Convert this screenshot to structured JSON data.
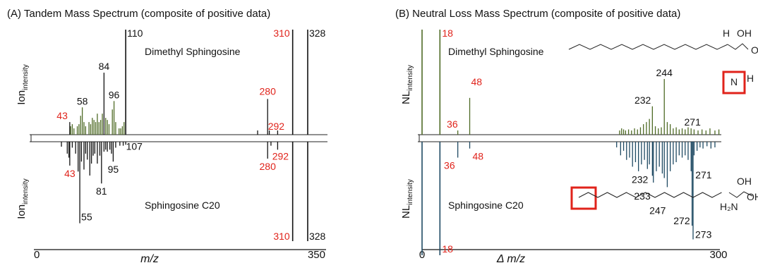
{
  "colors": {
    "green": "#4f6b26",
    "blue": "#1f4a63",
    "black": "#111111",
    "red": "#e0231b",
    "struct_box": "#e0231b"
  },
  "chart_data": [
    {
      "type": "bar",
      "panel": "A",
      "title": "(A) Tandem Mass Spectrum (composite of positive data)",
      "xlabel": "m/z",
      "ylabel_top": {
        "main": "Ion",
        "sub": "intensity"
      },
      "ylabel_bottom": {
        "main": "Ion",
        "sub": "intensity"
      },
      "xlim": [
        0,
        350
      ],
      "x_ticks": [
        "0",
        "350"
      ],
      "top_compound": "Dimethyl Sphingosine",
      "bottom_compound": "Sphingosine C20",
      "top_peaks": [
        {
          "x": 43,
          "y": 0.12,
          "label": "43",
          "red": true
        },
        {
          "x": 44,
          "y": 0.08
        },
        {
          "x": 46,
          "y": 0.1
        },
        {
          "x": 48,
          "y": 0.06
        },
        {
          "x": 52,
          "y": 0.08
        },
        {
          "x": 54,
          "y": 0.1
        },
        {
          "x": 56,
          "y": 0.18
        },
        {
          "x": 58,
          "y": 0.26,
          "label": "58"
        },
        {
          "x": 60,
          "y": 0.12
        },
        {
          "x": 62,
          "y": 0.08
        },
        {
          "x": 66,
          "y": 0.12
        },
        {
          "x": 68,
          "y": 0.1
        },
        {
          "x": 70,
          "y": 0.16
        },
        {
          "x": 72,
          "y": 0.14
        },
        {
          "x": 74,
          "y": 0.12
        },
        {
          "x": 76,
          "y": 0.2
        },
        {
          "x": 78,
          "y": 0.12
        },
        {
          "x": 80,
          "y": 0.14
        },
        {
          "x": 82,
          "y": 0.2
        },
        {
          "x": 84,
          "y": 0.59,
          "label": "84"
        },
        {
          "x": 86,
          "y": 0.16
        },
        {
          "x": 88,
          "y": 0.14
        },
        {
          "x": 90,
          "y": 0.1
        },
        {
          "x": 94,
          "y": 0.24
        },
        {
          "x": 96,
          "y": 0.32,
          "label": "96"
        },
        {
          "x": 98,
          "y": 0.12
        },
        {
          "x": 102,
          "y": 0.06
        },
        {
          "x": 104,
          "y": 0.06
        },
        {
          "x": 106,
          "y": 0.08
        },
        {
          "x": 108,
          "y": 0.12
        },
        {
          "x": 110,
          "y": 1.0,
          "label": "110"
        },
        {
          "x": 268,
          "y": 0.04
        },
        {
          "x": 280,
          "y": 0.34,
          "label": "280",
          "red": true
        },
        {
          "x": 282,
          "y": 0.04
        },
        {
          "x": 292,
          "y": 0.04,
          "label": "292",
          "red": true
        },
        {
          "x": 310,
          "y": 1.0,
          "label": "310",
          "red": true
        },
        {
          "x": 328,
          "y": 1.0,
          "label": "328"
        }
      ],
      "bottom_peaks": [
        {
          "x": 33,
          "y": 0.05
        },
        {
          "x": 40,
          "y": 0.12
        },
        {
          "x": 42,
          "y": 0.16
        },
        {
          "x": 43,
          "y": 0.24,
          "label": "43",
          "red": true
        },
        {
          "x": 46,
          "y": 0.06
        },
        {
          "x": 50,
          "y": 0.12
        },
        {
          "x": 53,
          "y": 0.3
        },
        {
          "x": 55,
          "y": 0.82,
          "label": "55"
        },
        {
          "x": 57,
          "y": 0.2
        },
        {
          "x": 60,
          "y": 0.28
        },
        {
          "x": 62,
          "y": 0.12
        },
        {
          "x": 64,
          "y": 0.18
        },
        {
          "x": 67,
          "y": 0.34
        },
        {
          "x": 69,
          "y": 0.22
        },
        {
          "x": 71,
          "y": 0.14
        },
        {
          "x": 73,
          "y": 0.12
        },
        {
          "x": 76,
          "y": 0.22
        },
        {
          "x": 79,
          "y": 0.14
        },
        {
          "x": 81,
          "y": 0.42,
          "label": "81"
        },
        {
          "x": 84,
          "y": 0.1
        },
        {
          "x": 86,
          "y": 0.08
        },
        {
          "x": 88,
          "y": 0.1
        },
        {
          "x": 91,
          "y": 0.08
        },
        {
          "x": 93,
          "y": 0.12
        },
        {
          "x": 95,
          "y": 0.2,
          "label": "95"
        },
        {
          "x": 98,
          "y": 0.06
        },
        {
          "x": 103,
          "y": 0.04
        },
        {
          "x": 107,
          "y": 0.04,
          "label": "107"
        },
        {
          "x": 110,
          "y": 0.03
        },
        {
          "x": 280,
          "y": 0.17,
          "label": "280",
          "red": true
        },
        {
          "x": 284,
          "y": 0.04
        },
        {
          "x": 292,
          "y": 0.08,
          "label": "292",
          "red": true
        },
        {
          "x": 310,
          "y": 1.0,
          "label": "310",
          "red": true
        },
        {
          "x": 328,
          "y": 1.0,
          "label": "328"
        }
      ]
    },
    {
      "type": "bar",
      "panel": "B",
      "title": "(B) Neutral Loss Mass Spectrum (composite of positive data)",
      "xlabel": "Δ m/z",
      "ylabel_top": {
        "main": "NL",
        "sub": "intensity"
      },
      "ylabel_bottom": {
        "main": "NL",
        "sub": "intensity"
      },
      "xlim": [
        0,
        300
      ],
      "x_ticks": [
        "0",
        "300"
      ],
      "top_compound": "Dimethyl Sphingosine",
      "bottom_compound": "Sphingosine C20",
      "top_peaks": [
        {
          "x": 0,
          "y": 1.0
        },
        {
          "x": 18,
          "y": 1.0,
          "label": "18",
          "red": true
        },
        {
          "x": 36,
          "y": 0.04,
          "label": "36",
          "red": true
        },
        {
          "x": 48,
          "y": 0.35,
          "label": "48",
          "red": true
        },
        {
          "x": 199,
          "y": 0.04
        },
        {
          "x": 201,
          "y": 0.06
        },
        {
          "x": 203,
          "y": 0.05
        },
        {
          "x": 205,
          "y": 0.04
        },
        {
          "x": 208,
          "y": 0.05
        },
        {
          "x": 211,
          "y": 0.04
        },
        {
          "x": 214,
          "y": 0.06
        },
        {
          "x": 217,
          "y": 0.05
        },
        {
          "x": 220,
          "y": 0.07
        },
        {
          "x": 223,
          "y": 0.1
        },
        {
          "x": 226,
          "y": 0.12
        },
        {
          "x": 229,
          "y": 0.15
        },
        {
          "x": 232,
          "y": 0.27,
          "label": "232"
        },
        {
          "x": 235,
          "y": 0.08
        },
        {
          "x": 238,
          "y": 0.06
        },
        {
          "x": 241,
          "y": 0.07
        },
        {
          "x": 244,
          "y": 0.53,
          "label": "244"
        },
        {
          "x": 247,
          "y": 0.12
        },
        {
          "x": 250,
          "y": 0.1
        },
        {
          "x": 253,
          "y": 0.06
        },
        {
          "x": 256,
          "y": 0.07
        },
        {
          "x": 259,
          "y": 0.05
        },
        {
          "x": 262,
          "y": 0.06
        },
        {
          "x": 265,
          "y": 0.05
        },
        {
          "x": 268,
          "y": 0.07
        },
        {
          "x": 271,
          "y": 0.06,
          "label": "271"
        },
        {
          "x": 274,
          "y": 0.05
        },
        {
          "x": 278,
          "y": 0.04
        },
        {
          "x": 282,
          "y": 0.05
        },
        {
          "x": 286,
          "y": 0.04
        },
        {
          "x": 290,
          "y": 0.06
        },
        {
          "x": 295,
          "y": 0.04
        },
        {
          "x": 299,
          "y": 0.05
        }
      ],
      "bottom_peaks": [
        {
          "x": 0,
          "y": 1.0
        },
        {
          "x": 18,
          "y": 1.0,
          "label": "18",
          "red": true
        },
        {
          "x": 36,
          "y": 0.14,
          "label": "36",
          "red": true
        },
        {
          "x": 48,
          "y": 0.06,
          "label": "48",
          "red": true
        },
        {
          "x": 196,
          "y": 0.05
        },
        {
          "x": 200,
          "y": 0.12
        },
        {
          "x": 203,
          "y": 0.08
        },
        {
          "x": 206,
          "y": 0.16
        },
        {
          "x": 209,
          "y": 0.14
        },
        {
          "x": 212,
          "y": 0.22
        },
        {
          "x": 215,
          "y": 0.18
        },
        {
          "x": 218,
          "y": 0.26
        },
        {
          "x": 221,
          "y": 0.2
        },
        {
          "x": 224,
          "y": 0.16
        },
        {
          "x": 227,
          "y": 0.24
        },
        {
          "x": 229,
          "y": 0.2
        },
        {
          "x": 232,
          "y": 0.3,
          "label": "232"
        },
        {
          "x": 233,
          "y": 0.36,
          "label": "233"
        },
        {
          "x": 236,
          "y": 0.26
        },
        {
          "x": 239,
          "y": 0.22
        },
        {
          "x": 242,
          "y": 0.28
        },
        {
          "x": 244,
          "y": 0.32
        },
        {
          "x": 247,
          "y": 0.4,
          "label": "247"
        },
        {
          "x": 250,
          "y": 0.26
        },
        {
          "x": 253,
          "y": 0.2
        },
        {
          "x": 256,
          "y": 0.18
        },
        {
          "x": 259,
          "y": 0.12
        },
        {
          "x": 262,
          "y": 0.14
        },
        {
          "x": 265,
          "y": 0.12
        },
        {
          "x": 268,
          "y": 0.16
        },
        {
          "x": 271,
          "y": 0.26,
          "label": "271"
        },
        {
          "x": 274,
          "y": 0.12
        },
        {
          "x": 277,
          "y": 0.08
        },
        {
          "x": 280,
          "y": 0.05
        },
        {
          "x": 283,
          "y": 0.06
        },
        {
          "x": 287,
          "y": 0.04
        },
        {
          "x": 291,
          "y": 0.06
        },
        {
          "x": 295,
          "y": 0.05
        },
        {
          "x": 272,
          "y": 0.74,
          "label": "272"
        },
        {
          "x": 273,
          "y": 0.86,
          "label": "273"
        }
      ],
      "structures": {
        "top": {
          "atoms": [
            "H",
            "OH",
            "O",
            "N",
            "H"
          ]
        },
        "bottom": {
          "atoms": [
            "OH",
            "H₂N",
            "OH"
          ]
        }
      }
    }
  ]
}
